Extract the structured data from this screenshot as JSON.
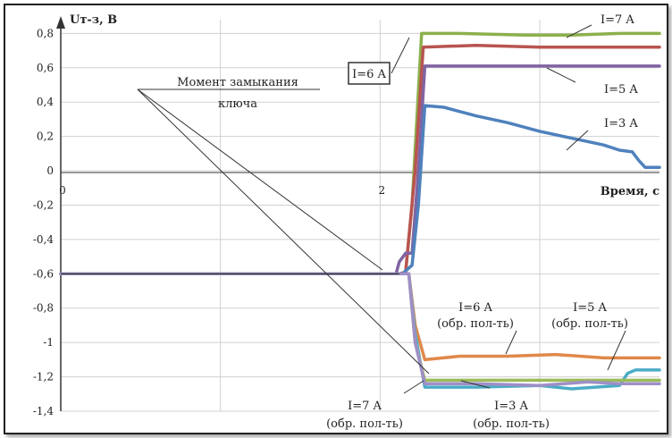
{
  "chart_data": {
    "type": "line",
    "title": "",
    "ylabel": "Uт-з, В",
    "xlabel": "Время, с",
    "xlim": [
      0,
      3.75
    ],
    "ylim": [
      -1.4,
      0.88
    ],
    "x_ticks": [
      0,
      2
    ],
    "y_ticks": [
      0.8,
      0.6,
      0.4,
      0.2,
      0,
      -0.2,
      -0.4,
      -0.6,
      -0.8,
      -1,
      -1.2,
      -1.4
    ],
    "y_tick_labels": [
      "0,8",
      "0,6",
      "0,4",
      "0,2",
      "0",
      "-0,2",
      "-0,4",
      "-0,6",
      "-0,8",
      "-1",
      "-1,2",
      "-1,4"
    ],
    "grid": true,
    "series": [
      {
        "name": "I=7 A",
        "color": "#8cb04c",
        "points": [
          [
            0,
            -0.6
          ],
          [
            2.12,
            -0.6
          ],
          [
            2.16,
            -0.59
          ],
          [
            2.2,
            -0.2
          ],
          [
            2.26,
            0.8
          ],
          [
            2.5,
            0.8
          ],
          [
            2.9,
            0.79
          ],
          [
            3.2,
            0.79
          ],
          [
            3.5,
            0.8
          ],
          [
            3.75,
            0.8
          ]
        ]
      },
      {
        "name": "I=6 A",
        "color": "#b85450",
        "points": [
          [
            0,
            -0.6
          ],
          [
            2.12,
            -0.6
          ],
          [
            2.16,
            -0.59
          ],
          [
            2.22,
            0.0
          ],
          [
            2.27,
            0.72
          ],
          [
            2.6,
            0.73
          ],
          [
            3.0,
            0.72
          ],
          [
            3.4,
            0.72
          ],
          [
            3.75,
            0.72
          ]
        ]
      },
      {
        "name": "I=5 A",
        "color": "#8064a2",
        "points": [
          [
            0,
            -0.6
          ],
          [
            2.1,
            -0.6
          ],
          [
            2.12,
            -0.53
          ],
          [
            2.16,
            -0.48
          ],
          [
            2.2,
            -0.48
          ],
          [
            2.24,
            0.0
          ],
          [
            2.28,
            0.61
          ],
          [
            2.6,
            0.61
          ],
          [
            3.0,
            0.61
          ],
          [
            3.4,
            0.61
          ],
          [
            3.75,
            0.61
          ]
        ]
      },
      {
        "name": "I=3 A",
        "color": "#4f81bd",
        "points": [
          [
            0,
            -0.6
          ],
          [
            2.14,
            -0.6
          ],
          [
            2.2,
            -0.55
          ],
          [
            2.24,
            -0.2
          ],
          [
            2.28,
            0.38
          ],
          [
            2.4,
            0.37
          ],
          [
            2.6,
            0.32
          ],
          [
            2.8,
            0.28
          ],
          [
            3.0,
            0.23
          ],
          [
            3.2,
            0.19
          ],
          [
            3.4,
            0.15
          ],
          [
            3.5,
            0.12
          ],
          [
            3.58,
            0.11
          ],
          [
            3.62,
            0.06
          ],
          [
            3.66,
            0.02
          ],
          [
            3.75,
            0.02
          ]
        ]
      },
      {
        "name": "I=6 A (обр. пол-ть)",
        "color": "#e0884a",
        "points": [
          [
            0,
            -0.6
          ],
          [
            2.18,
            -0.6
          ],
          [
            2.22,
            -0.9
          ],
          [
            2.28,
            -1.1
          ],
          [
            2.5,
            -1.08
          ],
          [
            2.8,
            -1.08
          ],
          [
            3.1,
            -1.07
          ],
          [
            3.4,
            -1.09
          ],
          [
            3.75,
            -1.09
          ]
        ]
      },
      {
        "name": "I=5 A (обр. пол-ть)",
        "color": "#4bacc6",
        "points": [
          [
            0,
            -0.6
          ],
          [
            2.18,
            -0.6
          ],
          [
            2.22,
            -0.95
          ],
          [
            2.28,
            -1.26
          ],
          [
            2.6,
            -1.26
          ],
          [
            3.0,
            -1.25
          ],
          [
            3.2,
            -1.27
          ],
          [
            3.35,
            -1.26
          ],
          [
            3.5,
            -1.25
          ],
          [
            3.55,
            -1.18
          ],
          [
            3.6,
            -1.16
          ],
          [
            3.75,
            -1.16
          ]
        ]
      },
      {
        "name": "I=7 A (обр. пол-ть)",
        "color": "#9bbb59",
        "points": [
          [
            0,
            -0.6
          ],
          [
            2.18,
            -0.6
          ],
          [
            2.22,
            -1.0
          ],
          [
            2.28,
            -1.22
          ],
          [
            2.6,
            -1.22
          ],
          [
            3.0,
            -1.22
          ],
          [
            3.4,
            -1.22
          ],
          [
            3.75,
            -1.22
          ]
        ]
      },
      {
        "name": "I=3 A (обр. пол-ть)",
        "color": "#9f8fc7",
        "points": [
          [
            0,
            -0.6
          ],
          [
            2.18,
            -0.6
          ],
          [
            2.22,
            -1.0
          ],
          [
            2.28,
            -1.24
          ],
          [
            2.6,
            -1.24
          ],
          [
            3.0,
            -1.25
          ],
          [
            3.3,
            -1.23
          ],
          [
            3.5,
            -1.24
          ],
          [
            3.75,
            -1.24
          ]
        ]
      }
    ],
    "annotations": {
      "moment": "Момент замыкания",
      "moment2": "ключа",
      "i7": "I=7 A",
      "i6": "I=6 A",
      "i5": "I=5 A",
      "i3": "I=3 A",
      "i6r": "I=6 A",
      "i5r": "I=5 A",
      "i7r": "I=7 A",
      "i3r": "I=3 A",
      "rev": "(обр. пол-ть)"
    }
  }
}
